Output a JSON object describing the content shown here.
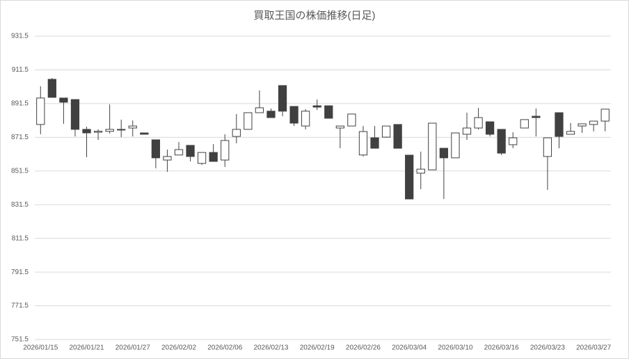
{
  "chart_data": {
    "type": "candlestick",
    "title": "買取王国の株価推移(日足)",
    "categories": [
      "2026/01/15",
      null,
      null,
      null,
      "2026/01/21",
      null,
      null,
      null,
      "2026/01/27",
      null,
      null,
      null,
      "2026/02/02",
      null,
      null,
      null,
      "2026/02/06",
      null,
      null,
      null,
      "2026/02/13",
      null,
      null,
      null,
      "2026/02/19",
      null,
      null,
      null,
      "2026/02/26",
      null,
      null,
      null,
      "2026/03/04",
      null,
      null,
      null,
      "2026/03/10",
      null,
      null,
      null,
      "2026/03/16",
      null,
      null,
      null,
      "2026/03/23",
      null,
      null,
      null,
      "2026/03/27",
      null
    ],
    "open": [
      879.1,
      905.9,
      894.8,
      893.9,
      876.2,
      874.5,
      875.0,
      876.2,
      877.0,
      874.1,
      870.0,
      858.0,
      861.0,
      866.7,
      856.0,
      862.5,
      858.0,
      872.0,
      876.2,
      886.1,
      887.0,
      902.2,
      889.8,
      878.2,
      890.2,
      890.2,
      877.0,
      878.2,
      861.0,
      871.2,
      871.6,
      879.1,
      860.9,
      850.2,
      852.2,
      865.0,
      859.3,
      873.3,
      877.0,
      880.7,
      876.2,
      867.1,
      877.0,
      884.0,
      860.1,
      886.1,
      873.3,
      878.2,
      879.1,
      881.1
    ],
    "high": [
      901.8,
      906.7,
      894.8,
      893.9,
      877.8,
      876.2,
      891.0,
      882.0,
      881.5,
      874.1,
      870.0,
      864.2,
      868.7,
      866.7,
      862.5,
      867.5,
      873.3,
      885.3,
      886.1,
      899.3,
      888.6,
      902.2,
      889.8,
      888.2,
      893.9,
      890.2,
      878.2,
      885.3,
      878.2,
      878.2,
      878.2,
      879.1,
      860.9,
      863.0,
      879.9,
      865.0,
      874.1,
      886.1,
      889.0,
      880.7,
      876.2,
      874.5,
      882.0,
      888.6,
      871.2,
      886.1,
      880.0,
      879.5,
      881.1,
      888.2
    ],
    "low": [
      873.3,
      895.2,
      879.5,
      872.0,
      859.7,
      870.0,
      873.7,
      871.6,
      872.0,
      873.3,
      853.1,
      851.0,
      861.0,
      857.2,
      855.1,
      857.2,
      853.9,
      867.9,
      876.2,
      886.1,
      883.2,
      884.0,
      878.2,
      876.2,
      887.7,
      882.8,
      865.0,
      878.2,
      860.1,
      865.0,
      871.2,
      865.0,
      834.9,
      840.7,
      852.2,
      834.9,
      859.3,
      870.0,
      876.2,
      872.0,
      861.0,
      865.0,
      877.0,
      872.0,
      840.3,
      865.0,
      873.3,
      874.1,
      875.0,
      875.0
    ],
    "close": [
      894.8,
      895.2,
      892.3,
      876.2,
      874.1,
      875.1,
      876.2,
      875.8,
      878.2,
      873.3,
      859.3,
      860.1,
      864.2,
      860.1,
      862.5,
      857.2,
      869.6,
      876.2,
      886.1,
      889.0,
      883.2,
      887.0,
      879.9,
      887.0,
      889.4,
      882.8,
      878.2,
      885.3,
      874.9,
      865.0,
      878.2,
      865.0,
      834.9,
      852.6,
      879.9,
      859.3,
      874.1,
      877.0,
      883.2,
      873.3,
      862.1,
      871.2,
      882.0,
      883.2,
      871.2,
      872.0,
      875.0,
      879.5,
      881.1,
      888.2
    ],
    "up_color": "#ffffff",
    "down_color": "#404040",
    "line_color": "#404040",
    "ylim": [
      751.5,
      931.5
    ],
    "yticks": [
      751.5,
      771.5,
      791.5,
      811.5,
      831.5,
      851.5,
      871.5,
      891.5,
      911.5,
      931.5
    ],
    "grid": true
  }
}
